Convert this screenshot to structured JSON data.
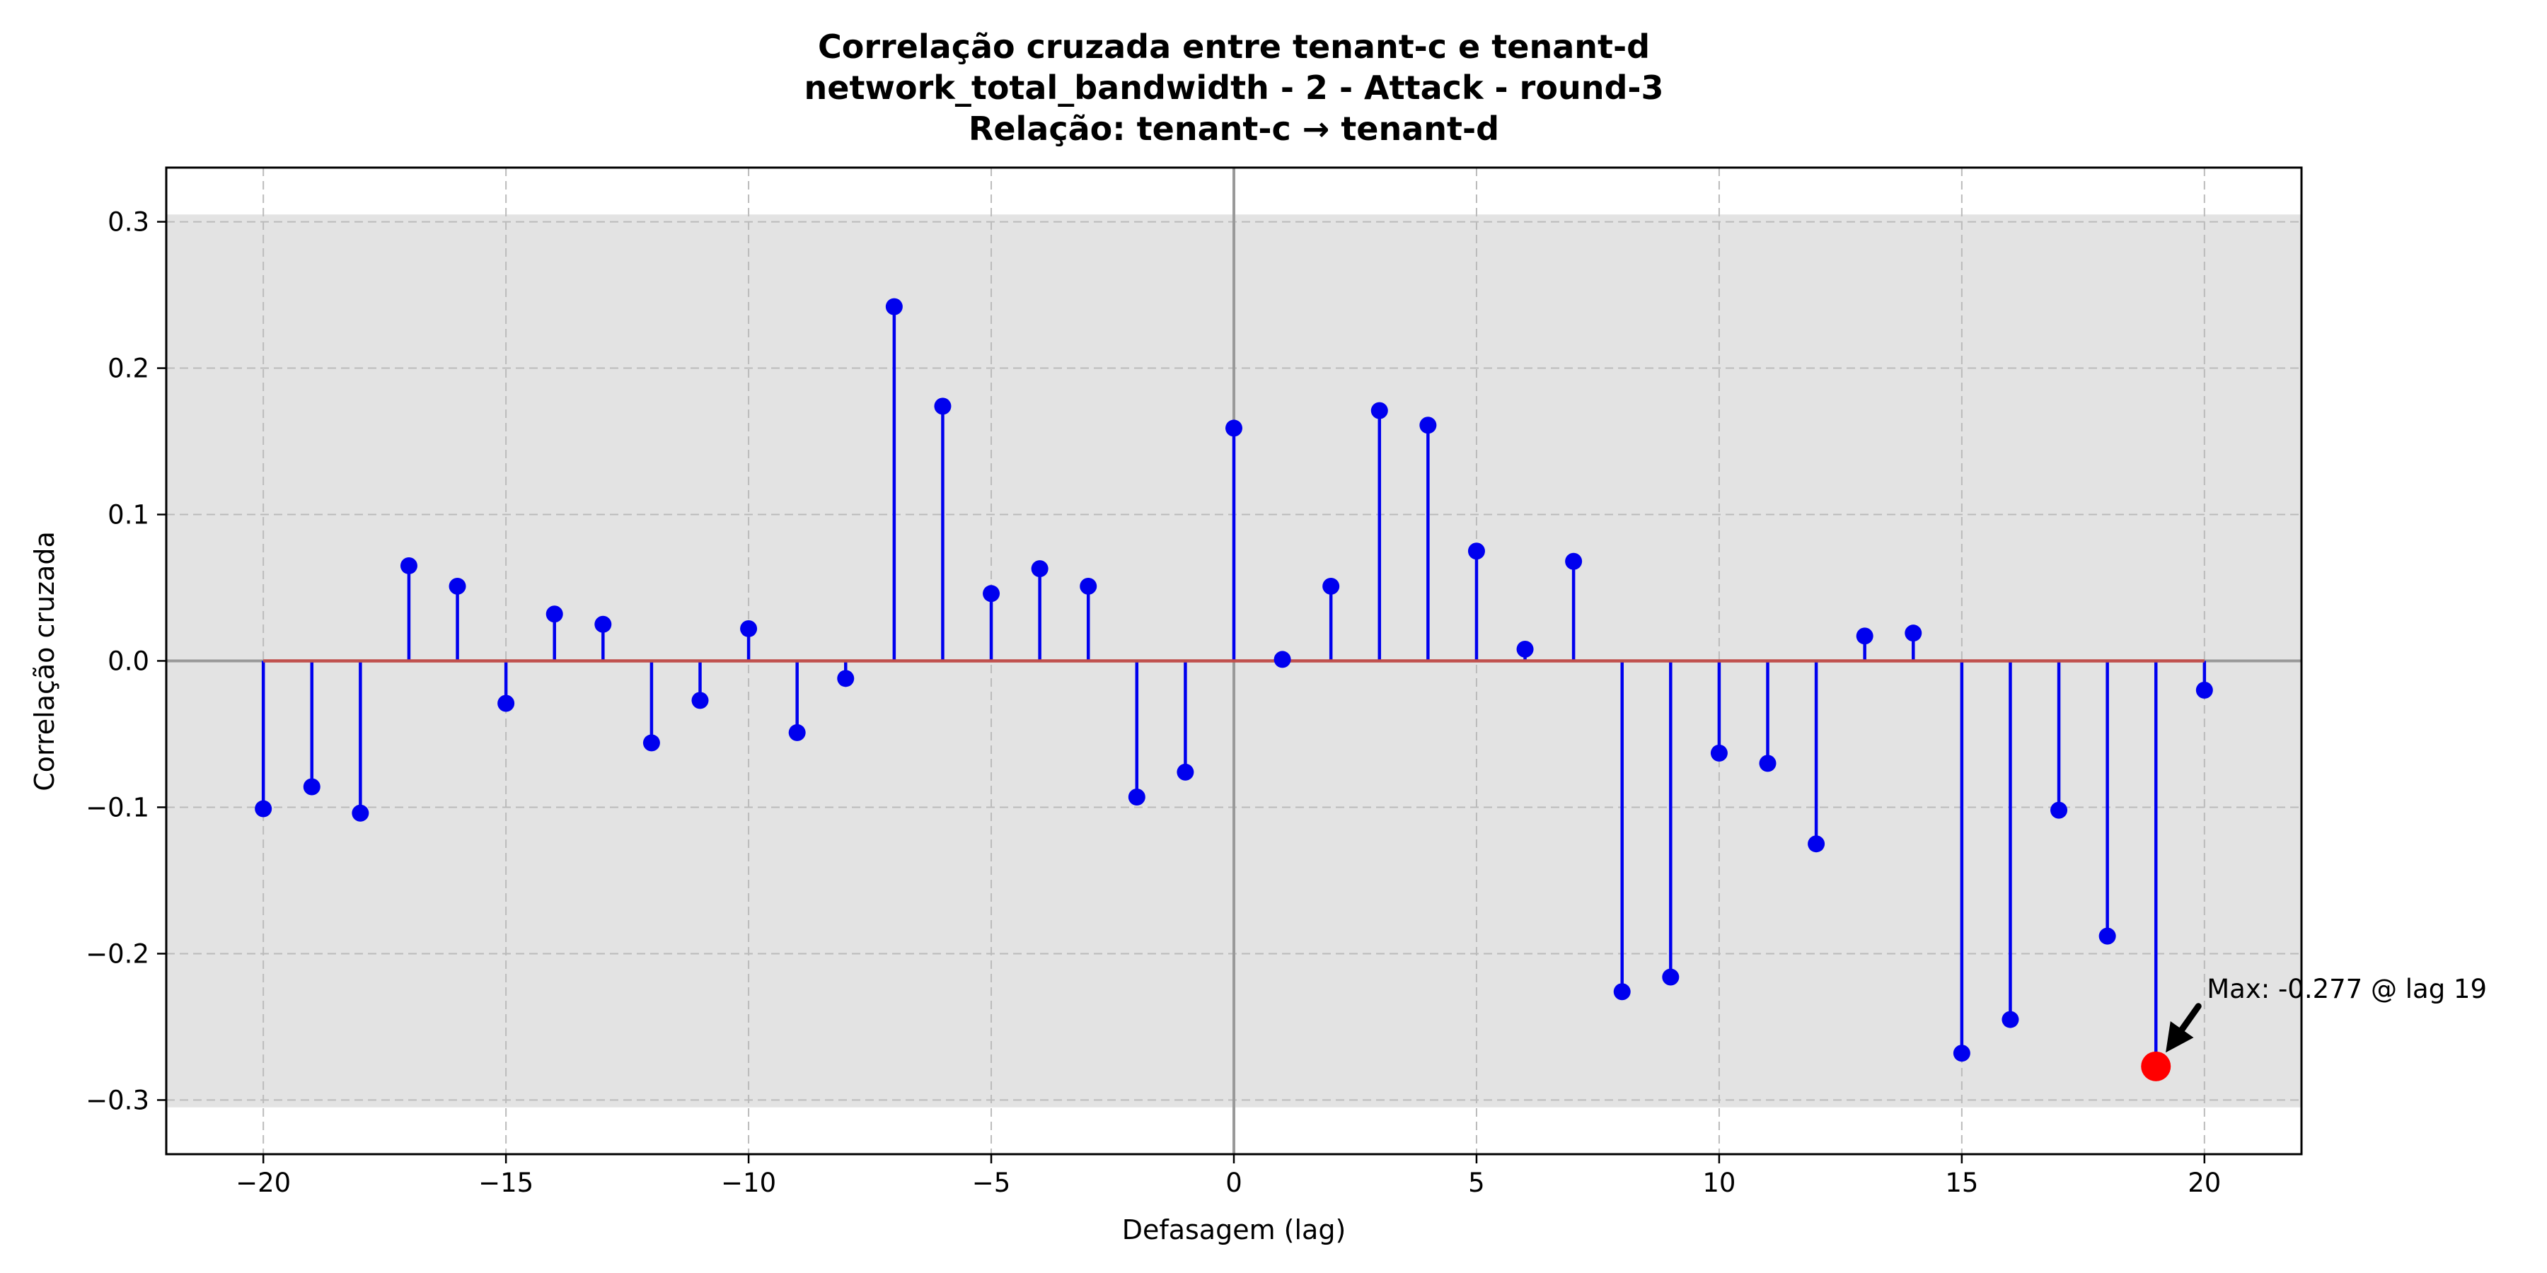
{
  "chart_data": {
    "type": "stem",
    "title_lines": [
      "Correlação cruzada entre tenant-c e tenant-d",
      "network_total_bandwidth - 2 - Attack - round-3",
      "Relação: tenant-c → tenant-d"
    ],
    "xlabel": "Defasagem (lag)",
    "ylabel": "Correlação cruzada",
    "xlim": [
      -22,
      22
    ],
    "ylim": [
      -0.337,
      0.337
    ],
    "x_ticks": [
      -20,
      -15,
      -10,
      -5,
      0,
      5,
      10,
      15,
      20
    ],
    "x_tick_labels": [
      "−20",
      "−15",
      "−10",
      "−5",
      "0",
      "5",
      "10",
      "15",
      "20"
    ],
    "y_ticks": [
      0.3,
      0.2,
      0.1,
      0.0,
      -0.1,
      -0.2,
      -0.3
    ],
    "y_tick_labels": [
      "0.3",
      "0.2",
      "0.1",
      "0.0",
      "−0.1",
      "−0.2",
      "−0.3"
    ],
    "grid": true,
    "shaded_band": [
      -0.305,
      0.305
    ],
    "x": [
      -20,
      -19,
      -18,
      -17,
      -16,
      -15,
      -14,
      -13,
      -12,
      -11,
      -10,
      -9,
      -8,
      -7,
      -6,
      -5,
      -4,
      -3,
      -2,
      -1,
      0,
      1,
      2,
      3,
      4,
      5,
      6,
      7,
      8,
      9,
      10,
      11,
      12,
      13,
      14,
      15,
      16,
      17,
      18,
      19,
      20
    ],
    "values": [
      -0.101,
      -0.086,
      -0.104,
      0.065,
      0.051,
      -0.029,
      0.032,
      0.025,
      -0.056,
      -0.027,
      0.022,
      -0.049,
      -0.012,
      0.242,
      0.174,
      0.046,
      0.063,
      0.051,
      -0.093,
      -0.076,
      0.159,
      0.001,
      0.051,
      0.171,
      0.161,
      0.075,
      0.008,
      0.068,
      -0.226,
      -0.216,
      -0.063,
      -0.07,
      -0.125,
      0.017,
      0.019,
      -0.268,
      -0.245,
      -0.102,
      -0.188,
      -0.277,
      -0.02
    ],
    "max_point": {
      "x": 19,
      "y": -0.277
    },
    "annotation": "Max: -0.277 @ lag 19",
    "colors": {
      "stem": "#0000ee",
      "marker": "#0000ee",
      "baseline": "#c0504d",
      "band": "#e3e3e3",
      "grid": "#bbbbbb",
      "zero_line": "#999999",
      "max_marker": "#ff0000",
      "arrow": "#000000"
    }
  }
}
